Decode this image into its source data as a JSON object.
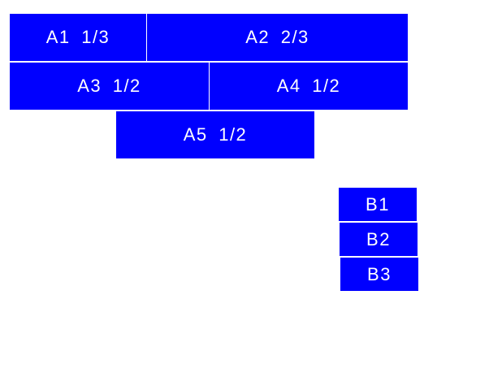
{
  "colors": {
    "box": "#0000ff",
    "text": "#ffffff"
  },
  "group_a": [
    {
      "label": "A1 1/3"
    },
    {
      "label": "A2 2/3"
    },
    {
      "label": "A3 1/2"
    },
    {
      "label": "A4 1/2"
    },
    {
      "label": "A5 1/2"
    }
  ],
  "group_b": [
    {
      "label": "B1"
    },
    {
      "label": "B2"
    },
    {
      "label": "B3"
    }
  ]
}
